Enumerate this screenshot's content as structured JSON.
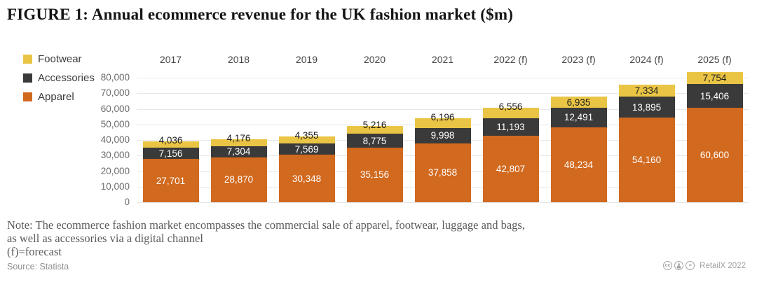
{
  "title": "FIGURE 1: Annual ecommerce revenue for the UK fashion market ($m)",
  "chart_data": {
    "type": "bar",
    "stacked": true,
    "categories": [
      "2017",
      "2018",
      "2019",
      "2020",
      "2021",
      "2022 (f)",
      "2023 (f)",
      "2024 (f)",
      "2025 (f)"
    ],
    "series": [
      {
        "name": "Apparel",
        "color": "#d1691e",
        "label_color": "#ffffff",
        "values": [
          27701,
          28870,
          30348,
          35156,
          37858,
          42807,
          48234,
          54160,
          60600
        ]
      },
      {
        "name": "Accessories",
        "color": "#3a3a3a",
        "label_color": "#ffffff",
        "values": [
          7156,
          7304,
          7569,
          8775,
          9998,
          11193,
          12491,
          13895,
          15406
        ]
      },
      {
        "name": "Footwear",
        "color": "#eac545",
        "label_color": "#1d1d1d",
        "values": [
          4036,
          4176,
          4355,
          5216,
          6196,
          6556,
          6935,
          7334,
          7754
        ]
      }
    ],
    "legend": [
      "Footwear",
      "Accessories",
      "Apparel"
    ],
    "legend_position": "top-left",
    "ylabel": "",
    "xlabel": "",
    "ylim": [
      0,
      80000
    ],
    "ytick_step": 10000,
    "grid": true
  },
  "notes": {
    "line1": "Note: The ecommerce fashion market encompasses the commercial sale of apparel, footwear, luggage and bags,",
    "line2": "as well as accessories via a digital channel",
    "line3": "(f)=forecast"
  },
  "footer": {
    "source": "Source: Statista",
    "brand": "RetailX 2022",
    "license_icons": [
      "cc-icon",
      "cc-by-icon",
      "cc-nd-icon"
    ]
  }
}
